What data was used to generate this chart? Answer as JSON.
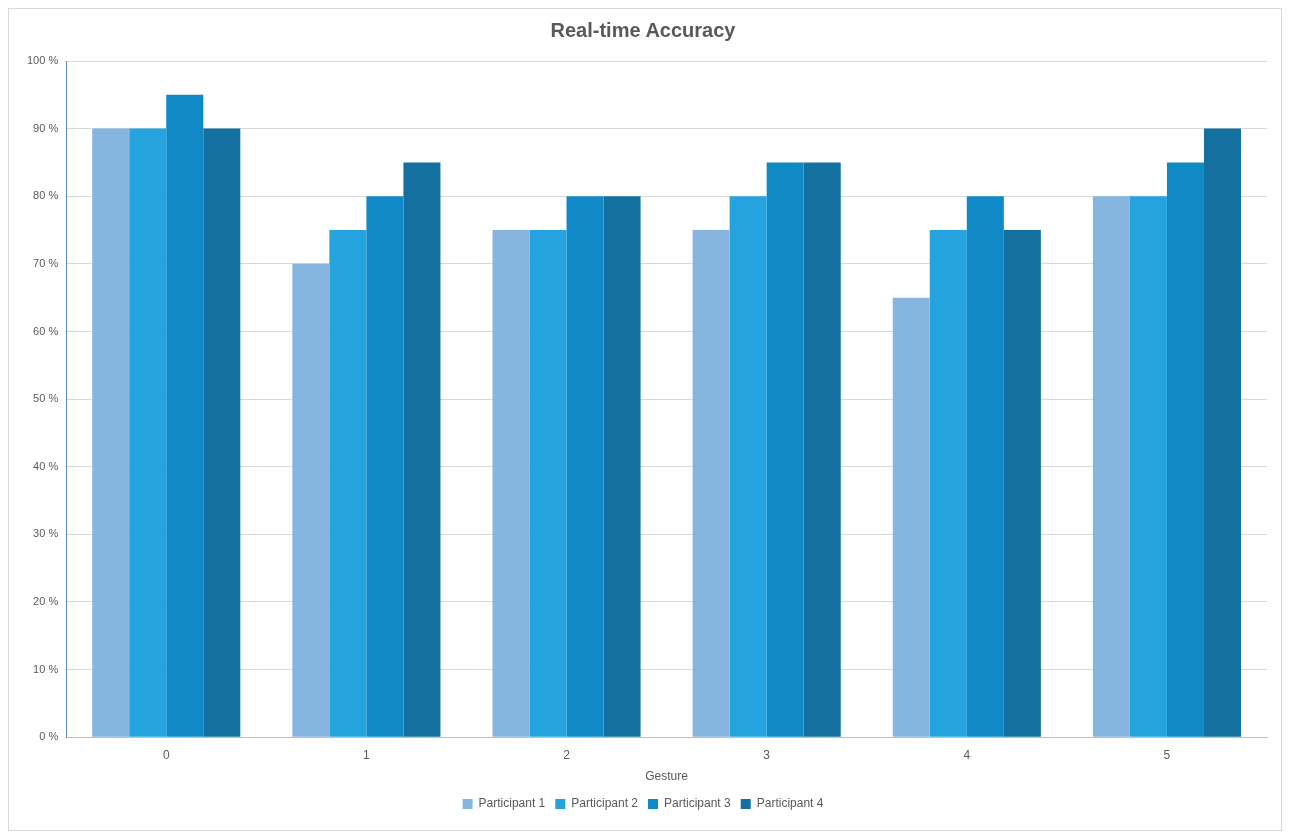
{
  "chart_data": {
    "type": "bar",
    "title": "Real-time Accuracy",
    "xlabel": "Gesture",
    "categories": [
      "0",
      "1",
      "2",
      "3",
      "4",
      "5"
    ],
    "series": [
      {
        "name": "Participant 1",
        "color": "#86b6e0",
        "values": [
          90,
          70,
          75,
          75,
          65,
          80
        ]
      },
      {
        "name": "Participant 2",
        "color": "#24a3df",
        "values": [
          90,
          75,
          75,
          80,
          75,
          80
        ]
      },
      {
        "name": "Participant 3",
        "color": "#1189c6",
        "values": [
          95,
          80,
          80,
          85,
          80,
          85
        ]
      },
      {
        "name": "Participant 4",
        "color": "#13709f",
        "values": [
          90,
          85,
          80,
          85,
          75,
          90
        ]
      }
    ],
    "ylim": [
      0,
      100
    ],
    "yticks": [
      {
        "value": 0,
        "label": "0 %"
      },
      {
        "value": 10,
        "label": "10 %"
      },
      {
        "value": 20,
        "label": "20 %"
      },
      {
        "value": 30,
        "label": "30 %"
      },
      {
        "value": 40,
        "label": "40 %"
      },
      {
        "value": 50,
        "label": "50 %"
      },
      {
        "value": 60,
        "label": "60 %"
      },
      {
        "value": 70,
        "label": "70 %"
      },
      {
        "value": 80,
        "label": "80 %"
      },
      {
        "value": 90,
        "label": "90 %"
      },
      {
        "value": 100,
        "label": "100 %"
      }
    ],
    "grid": "y",
    "legend": "bottom"
  }
}
